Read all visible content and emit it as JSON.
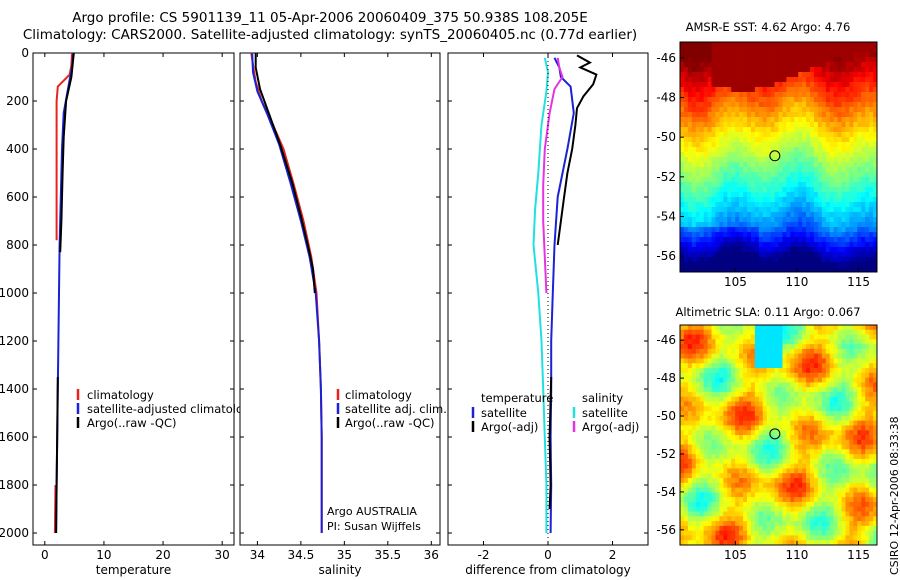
{
  "header": {
    "title_line1": "Argo profile: CS 5901139_11 05-Apr-2006 20060409_375 50.938S 108.205E",
    "title_line2": "Climatology: CARS2000. Satellite-adjusted climatology: synTS_20060405.nc (0.77d earlier)"
  },
  "colors": {
    "climatology": "#e8231e",
    "satellite": "#1a22d6",
    "argo": "#000000",
    "sal_satellite": "#22e0e0",
    "sal_argo": "#e632e0"
  },
  "chart_data": [
    {
      "id": "temperature",
      "type": "line",
      "xlabel": "temperature",
      "ylabel": "",
      "xlim": [
        -2,
        32
      ],
      "ylim": [
        2050,
        0
      ],
      "xticks": [
        0,
        10,
        20,
        30
      ],
      "yticks": [
        0,
        200,
        400,
        600,
        800,
        1000,
        1200,
        1400,
        1600,
        1800,
        2000
      ],
      "yticklabels": [
        "0",
        "200",
        "400",
        "600",
        "800",
        "1000",
        "1200",
        "1400",
        "1600",
        "1800",
        "2000"
      ],
      "legend": [
        "climatology",
        "satellite-adjusted climatology",
        "Argo(..raw -QC)"
      ],
      "series": [
        {
          "name": "climatology",
          "color_key": "climatology",
          "points": [
            [
              4.6,
              0
            ],
            [
              4.5,
              50
            ],
            [
              4.2,
              90
            ],
            [
              2.2,
              140
            ],
            [
              2.0,
              200
            ],
            [
              2.0,
              400
            ],
            [
              2.0,
              600
            ],
            [
              2.0,
              780
            ]
          ]
        },
        {
          "name": "climatology deep",
          "color_key": "climatology",
          "points": [
            [
              1.8,
              1800
            ],
            [
              1.7,
              2000
            ]
          ]
        },
        {
          "name": "satellite-adjusted climatology",
          "color_key": "satellite",
          "points": [
            [
              4.8,
              0
            ],
            [
              4.6,
              60
            ],
            [
              4.2,
              110
            ],
            [
              3.2,
              250
            ],
            [
              2.9,
              400
            ],
            [
              2.7,
              600
            ],
            [
              2.5,
              800
            ],
            [
              2.4,
              1000
            ],
            [
              2.3,
              1200
            ],
            [
              2.2,
              1400
            ],
            [
              2.1,
              1600
            ],
            [
              2.0,
              1800
            ],
            [
              1.9,
              2000
            ]
          ]
        },
        {
          "name": "Argo(..raw -QC)",
          "color_key": "argo",
          "points": [
            [
              4.9,
              0
            ],
            [
              4.7,
              50
            ],
            [
              4.5,
              100
            ],
            [
              3.6,
              200
            ],
            [
              3.2,
              350
            ],
            [
              3.0,
              500
            ],
            [
              2.8,
              700
            ],
            [
              2.6,
              830
            ]
          ]
        },
        {
          "name": "Argo deep",
          "color_key": "argo",
          "points": [
            [
              2.2,
              1350
            ],
            [
              2.1,
              1600
            ],
            [
              2.0,
              1800
            ],
            [
              1.9,
              2000
            ]
          ]
        }
      ]
    },
    {
      "id": "salinity",
      "type": "line",
      "xlabel": "salinity",
      "ylabel": "",
      "xlim": [
        33.8,
        36.1
      ],
      "ylim": [
        2050,
        0
      ],
      "xticks": [
        34,
        34.5,
        35,
        35.5,
        36
      ],
      "xticklabels": [
        "34",
        "34.5",
        "35",
        "35.5",
        "36"
      ],
      "legend": [
        "climatology",
        "satellite adj. clim.",
        "Argo(..raw -QC)"
      ],
      "annotation": [
        "Argo AUSTRALIA",
        "PI: Susan Wijffels"
      ],
      "series": [
        {
          "name": "climatology",
          "color_key": "climatology",
          "points": [
            [
              33.93,
              0
            ],
            [
              33.95,
              50
            ],
            [
              33.98,
              120
            ],
            [
              34.05,
              200
            ],
            [
              34.18,
              300
            ],
            [
              34.3,
              400
            ],
            [
              34.42,
              550
            ],
            [
              34.53,
              700
            ],
            [
              34.62,
              850
            ],
            [
              34.68,
              1000
            ],
            [
              34.71,
              1200
            ],
            [
              34.73,
              1400
            ],
            [
              34.74,
              1600
            ],
            [
              34.74,
              1800
            ],
            [
              34.74,
              2000
            ]
          ]
        },
        {
          "name": "satellite adj. clim.",
          "color_key": "satellite",
          "points": [
            [
              33.94,
              0
            ],
            [
              33.95,
              80
            ],
            [
              34.0,
              160
            ],
            [
              34.12,
              260
            ],
            [
              34.25,
              380
            ],
            [
              34.38,
              540
            ],
            [
              34.5,
              700
            ],
            [
              34.6,
              850
            ],
            [
              34.67,
              1000
            ],
            [
              34.71,
              1200
            ],
            [
              34.73,
              1400
            ],
            [
              34.74,
              1600
            ],
            [
              34.74,
              1800
            ],
            [
              34.74,
              2000
            ]
          ]
        },
        {
          "name": "Argo(..raw -QC)",
          "color_key": "argo",
          "points": [
            [
              33.98,
              0
            ],
            [
              33.98,
              60
            ],
            [
              34.03,
              150
            ],
            [
              34.13,
              250
            ],
            [
              34.26,
              380
            ],
            [
              34.4,
              540
            ],
            [
              34.5,
              680
            ],
            [
              34.58,
              800
            ],
            [
              34.64,
              900
            ],
            [
              34.66,
              1000
            ]
          ]
        }
      ]
    },
    {
      "id": "difference",
      "type": "line",
      "xlabel": "difference from climatology",
      "xlim": [
        -3.1,
        3.1
      ],
      "ylim": [
        2050,
        0
      ],
      "xticks": [
        -2,
        0,
        2
      ],
      "xticklabels": [
        "-2",
        "0",
        "2"
      ],
      "legend_temperature": [
        "temperature",
        "satellite",
        "Argo(-adj)"
      ],
      "legend_salinity": [
        "salinity",
        "satellite",
        "Argo(-adj)"
      ],
      "series": [
        {
          "name": "temperature satellite",
          "color_key": "satellite",
          "points": [
            [
              0.2,
              20
            ],
            [
              0.35,
              60
            ],
            [
              0.4,
              100
            ],
            [
              0.7,
              140
            ],
            [
              0.8,
              250
            ],
            [
              0.6,
              400
            ],
            [
              0.3,
              600
            ],
            [
              0.2,
              800
            ],
            [
              0.15,
              1000
            ],
            [
              0.1,
              1200
            ],
            [
              0.1,
              1400
            ],
            [
              0.08,
              1600
            ],
            [
              0.1,
              1800
            ],
            [
              0.08,
              2000
            ]
          ]
        },
        {
          "name": "temperature Argo(-adj)",
          "color_key": "argo",
          "points": [
            [
              0.9,
              10
            ],
            [
              1.3,
              40
            ],
            [
              1.0,
              60
            ],
            [
              1.5,
              90
            ],
            [
              1.4,
              130
            ],
            [
              1.1,
              180
            ],
            [
              0.9,
              230
            ],
            [
              0.85,
              300
            ],
            [
              0.75,
              400
            ],
            [
              0.6,
              500
            ],
            [
              0.5,
              600
            ],
            [
              0.4,
              700
            ],
            [
              0.3,
              800
            ]
          ]
        },
        {
          "name": "temperature Argo deep",
          "color_key": "argo",
          "points": [
            [
              0.1,
              1350
            ],
            [
              0.05,
              1600
            ],
            [
              0.08,
              1800
            ],
            [
              0.05,
              1900
            ]
          ]
        },
        {
          "name": "salinity satellite",
          "color_key": "sal_satellite",
          "points": [
            [
              -0.1,
              20
            ],
            [
              0.0,
              80
            ],
            [
              -0.05,
              160
            ],
            [
              -0.2,
              300
            ],
            [
              -0.3,
              500
            ],
            [
              -0.4,
              650
            ],
            [
              -0.45,
              800
            ],
            [
              -0.3,
              1000
            ],
            [
              -0.2,
              1200
            ],
            [
              -0.15,
              1400
            ],
            [
              -0.1,
              1600
            ],
            [
              -0.05,
              1800
            ],
            [
              -0.05,
              2000
            ]
          ]
        },
        {
          "name": "salinity Argo(-adj)",
          "color_key": "sal_argo",
          "points": [
            [
              0.3,
              20
            ],
            [
              0.35,
              60
            ],
            [
              0.45,
              100
            ],
            [
              0.2,
              150
            ],
            [
              0.05,
              250
            ],
            [
              -0.1,
              400
            ],
            [
              -0.15,
              550
            ],
            [
              -0.15,
              700
            ],
            [
              -0.1,
              850
            ],
            [
              -0.05,
              1000
            ]
          ]
        }
      ]
    },
    {
      "id": "sst_map",
      "type": "heatmap",
      "title": "AMSR-E SST: 4.62 Argo: 4.76",
      "xlim": [
        100.5,
        116.5
      ],
      "ylim": [
        -56.8,
        -45.2
      ],
      "xticks": [
        105,
        110,
        115
      ],
      "yticks": [
        -46,
        -48,
        -50,
        -52,
        -54,
        -56
      ],
      "marker": [
        108.205,
        -50.938
      ]
    },
    {
      "id": "sla_map",
      "type": "heatmap",
      "title": "Altimetric SLA: 0.11 Argo: 0.067",
      "xlim": [
        100.5,
        116.5
      ],
      "ylim": [
        -56.8,
        -45.2
      ],
      "xticks": [
        105,
        110,
        115
      ],
      "yticks": [
        -46,
        -48,
        -50,
        -52,
        -54,
        -56
      ],
      "marker": [
        108.205,
        -50.938
      ]
    }
  ],
  "credit": "CSIRO 12-Apr-2006 08:33:38"
}
